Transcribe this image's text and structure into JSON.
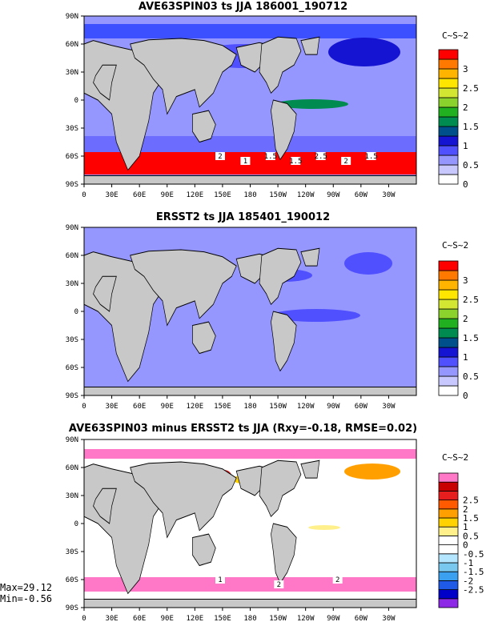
{
  "panels": [
    {
      "id": "model",
      "title": "AVE63SPIN03 ts JJA 186001_190712",
      "units": "C~S~2",
      "colorbar": {
        "colors": [
          "#ffffff",
          "#c8c8ff",
          "#9696ff",
          "#5050ff",
          "#1414d2",
          "#00508c",
          "#008c50",
          "#20b020",
          "#8cd22c",
          "#d2e632",
          "#ffe600",
          "#ffb400",
          "#ff7800",
          "#ff0000"
        ],
        "labels": [
          "0",
          "0.5",
          "1",
          "1.5",
          "2",
          "2.5",
          "3"
        ]
      },
      "contour_labels": [
        "2",
        "1",
        "1.5",
        "1.5",
        "2.5",
        "2",
        "1.5"
      ]
    },
    {
      "id": "obs",
      "title": "ERSST2 ts JJA 185401_190012",
      "units": "C~S~2",
      "colorbar": {
        "colors": [
          "#ffffff",
          "#c8c8ff",
          "#9696ff",
          "#5050ff",
          "#1414d2",
          "#00508c",
          "#008c50",
          "#20b020",
          "#8cd22c",
          "#d2e632",
          "#ffe600",
          "#ffb400",
          "#ff7800",
          "#ff0000"
        ],
        "labels": [
          "0",
          "0.5",
          "1",
          "1.5",
          "2",
          "2.5",
          "3"
        ]
      },
      "contour_labels": []
    },
    {
      "id": "diff",
      "title": "AVE63SPIN03 minus ERSST2 ts JJA (Rxy=-0.18, RMSE=0.02)",
      "units": "C~S~2",
      "colorbar": {
        "colors": [
          "#8c28e6",
          "#0000c8",
          "#1e5ae6",
          "#3ca0f0",
          "#78c8f0",
          "#b4e6ff",
          "#ffffff",
          "#ffffff",
          "#fff08c",
          "#ffd200",
          "#ffa000",
          "#ff5a00",
          "#e61e1e",
          "#c80000",
          "#ff78c8"
        ],
        "labels": [
          "-2.5",
          "-2",
          "-1.5",
          "-1",
          "-0.5",
          "0",
          "0.5",
          "1",
          "1.5",
          "2",
          "2.5"
        ]
      },
      "contour_labels": [
        "1",
        "2",
        "2"
      ]
    }
  ],
  "lat_labels": [
    "90N",
    "60N",
    "30N",
    "0",
    "30S",
    "60S",
    "90S"
  ],
  "lon_labels": [
    "0",
    "30E",
    "60E",
    "90E",
    "120E",
    "150E",
    "180",
    "150W",
    "120W",
    "90W",
    "60W",
    "30W"
  ],
  "stats": {
    "max": "Max=29.12",
    "min": "Min=-0.56"
  },
  "colors": {
    "land": "#c8c8c8",
    "ocean_low": "#9696ff",
    "frame": "#000000"
  }
}
